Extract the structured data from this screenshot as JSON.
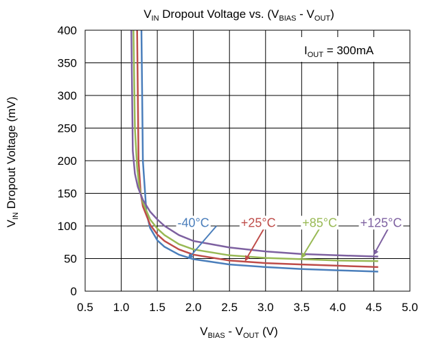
{
  "chart_data": {
    "type": "line",
    "title": {
      "main": "V",
      "sub1": "IN",
      "mid": " Dropout Voltage vs. (V",
      "sub2": "BIAS",
      "dash": " - V",
      "sub3": "OUT",
      "end": ")"
    },
    "xlabel": {
      "main": "V",
      "sub1": "BIAS",
      "dash": " - V",
      "sub2": "OUT",
      "end": " (V)"
    },
    "ylabel": {
      "main": "V",
      "sub1": "IN",
      "end": " Dropout Voltage (mV)"
    },
    "annotation": {
      "main": "I",
      "sub": "OUT",
      "end": " = 300mA"
    },
    "xlim": [
      0.5,
      5.0
    ],
    "ylim": [
      0,
      400
    ],
    "xticks": [
      "0.5",
      "1.0",
      "1.5",
      "2.0",
      "2.5",
      "3.0",
      "3.5",
      "4.0",
      "4.5",
      "5.0"
    ],
    "yticks": [
      "0",
      "50",
      "100",
      "150",
      "200",
      "250",
      "300",
      "350",
      "400"
    ],
    "grid": true,
    "series": [
      {
        "name": "-40°C",
        "color": "#4a7ebb",
        "x": [
          1.28,
          1.3,
          1.35,
          1.4,
          1.5,
          1.6,
          1.8,
          2.0,
          2.5,
          3.0,
          3.5,
          4.0,
          4.56
        ],
        "y": [
          400,
          200,
          120,
          97,
          78,
          68,
          56,
          49,
          41,
          37,
          34,
          32,
          30
        ]
      },
      {
        "name": "+25°C",
        "color": "#be4b48",
        "x": [
          1.22,
          1.24,
          1.27,
          1.3,
          1.4,
          1.5,
          1.6,
          1.8,
          2.0,
          2.5,
          3.0,
          3.5,
          4.0,
          4.56
        ],
        "y": [
          400,
          200,
          150,
          130,
          102,
          87,
          77,
          64,
          56,
          47,
          43,
          41,
          39,
          37
        ]
      },
      {
        "name": "+85°C",
        "color": "#98b954",
        "x": [
          1.17,
          1.19,
          1.22,
          1.25,
          1.3,
          1.4,
          1.5,
          1.6,
          1.8,
          2.0,
          2.5,
          3.0,
          3.5,
          4.0,
          4.56
        ],
        "y": [
          400,
          250,
          190,
          160,
          136,
          110,
          96,
          86,
          72,
          64,
          55,
          51,
          49,
          47,
          46
        ]
      },
      {
        "name": "+125°C",
        "color": "#7d60a0",
        "x": [
          1.14,
          1.16,
          1.19,
          1.23,
          1.3,
          1.4,
          1.5,
          1.6,
          1.8,
          2.0,
          2.5,
          3.0,
          3.5,
          4.0,
          4.56
        ],
        "y": [
          400,
          215,
          180,
          160,
          140,
          122,
          110,
          100,
          86,
          77,
          67,
          61,
          57,
          55,
          53
        ]
      }
    ],
    "labels": [
      {
        "text": "-40°C",
        "color": "#4a7ebb",
        "x": 2.0,
        "y": 105,
        "ax": 2.32,
        "ay": 100,
        "bx": 1.93,
        "by": 50
      },
      {
        "text": "+25°C",
        "color": "#be4b48",
        "x": 2.9,
        "y": 105,
        "ax": 3.0,
        "ay": 100,
        "bx": 2.72,
        "by": 47
      },
      {
        "text": "+85°C",
        "color": "#98b954",
        "x": 3.75,
        "y": 105,
        "ax": 3.77,
        "ay": 100,
        "bx": 3.5,
        "by": 51
      },
      {
        "text": "+125°C",
        "color": "#7d60a0",
        "x": 4.6,
        "y": 105,
        "ax": 4.72,
        "ay": 100,
        "bx": 4.5,
        "by": 56
      }
    ]
  }
}
